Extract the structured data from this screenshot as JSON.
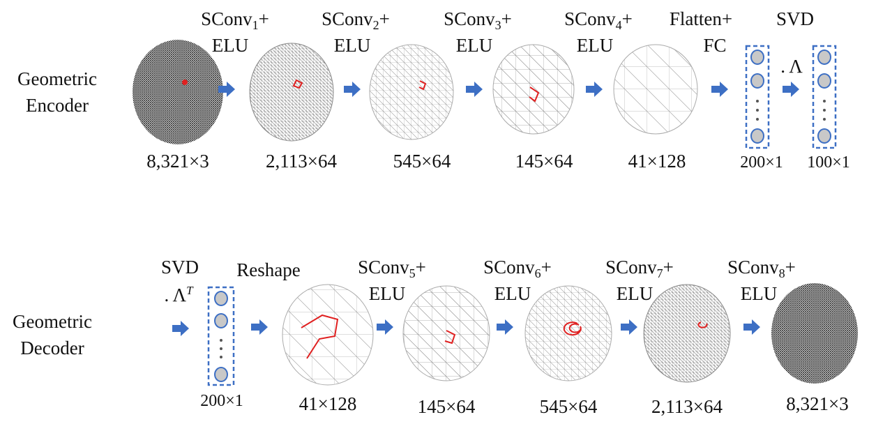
{
  "encoder": {
    "label": [
      "Geometric",
      "Encoder"
    ],
    "ops": [
      {
        "name": "SConv",
        "sub": "1",
        "suffix": "+",
        "line2": "ELU"
      },
      {
        "name": "SConv",
        "sub": "2",
        "suffix": "+",
        "line2": "ELU"
      },
      {
        "name": "SConv",
        "sub": "3",
        "suffix": "+",
        "line2": "ELU"
      },
      {
        "name": "SConv",
        "sub": "4",
        "suffix": "+",
        "line2": "ELU"
      },
      {
        "line1": "Flatten+",
        "line2": "FC"
      },
      {
        "line1": "SVD",
        "line2": ". Λ"
      }
    ],
    "sizes": [
      "8,321×3",
      "2,113×64",
      "545×64",
      "145×64",
      "41×128",
      "200×1",
      "100×1"
    ]
  },
  "decoder": {
    "label": [
      "Geometric",
      "Decoder"
    ],
    "ops": [
      {
        "line1": "SVD",
        "line2": ". Λ",
        "sup": "T"
      },
      {
        "line1": "Reshape"
      },
      {
        "name": "SConv",
        "sub": "5",
        "suffix": "+",
        "line2": "ELU"
      },
      {
        "name": "SConv",
        "sub": "6",
        "suffix": "+",
        "line2": "ELU"
      },
      {
        "name": "SConv",
        "sub": "7",
        "suffix": "+",
        "line2": "ELU"
      },
      {
        "name": "SConv",
        "sub": "8",
        "suffix": "+",
        "line2": "ELU"
      }
    ],
    "sizes": [
      "200×1",
      "41×128",
      "145×64",
      "545×64",
      "2,113×64",
      "8,321×3"
    ]
  }
}
